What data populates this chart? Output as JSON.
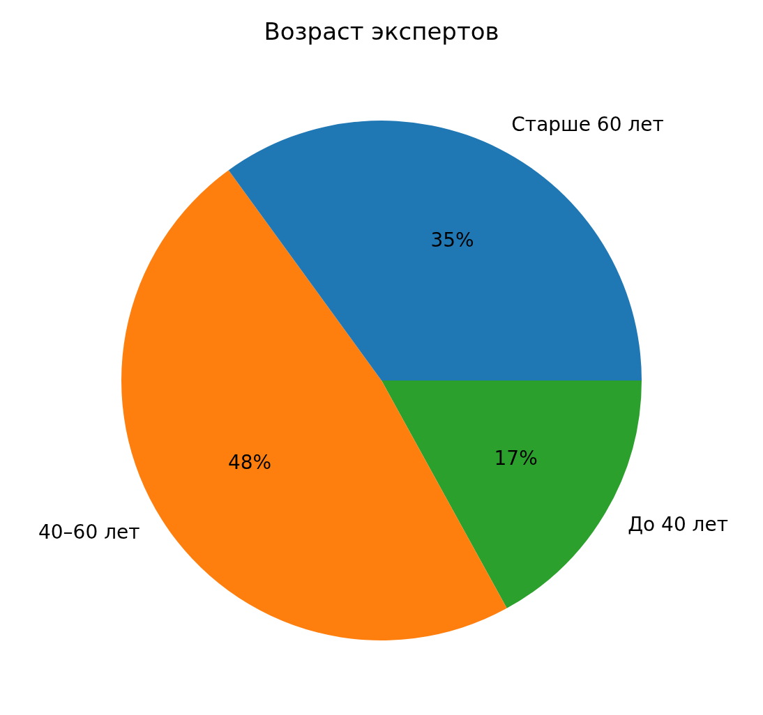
{
  "chart_data": {
    "type": "pie",
    "title": "Возраст экспертов",
    "categories": [
      "Старше 60 лет",
      "40–60 лет",
      "До 40 лет"
    ],
    "values": [
      35,
      48,
      17
    ],
    "colors": [
      "#1f77b4",
      "#ff7f0e",
      "#2ca02c"
    ],
    "value_labels": [
      "35%",
      "48%",
      "17%"
    ],
    "legend": false
  }
}
